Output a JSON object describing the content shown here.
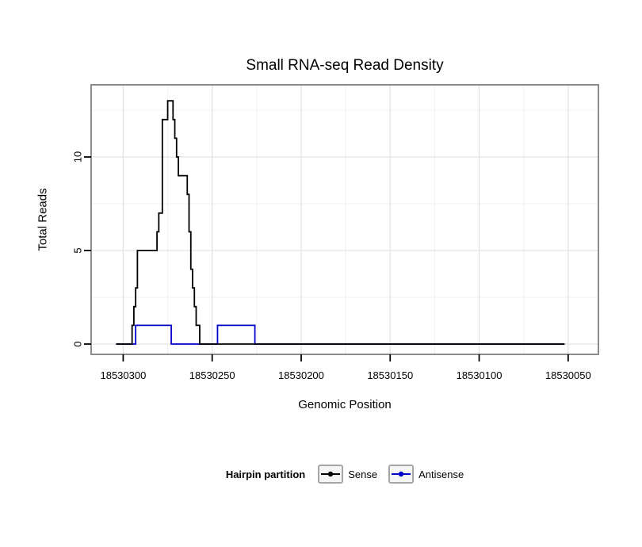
{
  "title": "Small RNA-seq Read Density",
  "x_axis": {
    "label": "Genomic Position",
    "reversed": true,
    "tick_labels": [
      "18530300",
      "18530250",
      "18530200",
      "18530150",
      "18530100",
      "18530050"
    ]
  },
  "y_axis": {
    "label": "Total Reads",
    "tick_labels": [
      "0",
      "5",
      "10"
    ]
  },
  "legend": {
    "title": "Hairpin partition",
    "items": [
      {
        "label": "Sense",
        "color": "#000000",
        "icon": "line-with-point"
      },
      {
        "label": "Antisense",
        "color": "#0000CC",
        "icon": "line-with-point"
      }
    ]
  },
  "colors": {
    "panel_border": "#8c8c8c",
    "grid_major": "#e3e3e3",
    "grid_minor": "#f1f1f1",
    "tick_mark": "#000000"
  },
  "chart_data": {
    "type": "line",
    "subtype": "step",
    "title": "Small RNA-seq Read Density",
    "xlabel": "Genomic Position",
    "ylabel": "Total Reads",
    "x_reversed": true,
    "x_domain": [
      18530318,
      18530033
    ],
    "x_major_ticks": [
      18530300,
      18530250,
      18530200,
      18530150,
      18530100,
      18530050
    ],
    "x_minor_ticks": [
      18530275,
      18530225,
      18530175,
      18530125,
      18530075
    ],
    "ylim": [
      -0.551,
      13.856
    ],
    "y_major_ticks": [
      0,
      5,
      10
    ],
    "y_minor_ticks": [
      2.5,
      7.5,
      12.5
    ],
    "grid": true,
    "legend_position": "bottom",
    "series": [
      {
        "name": "Sense",
        "color": "#000000",
        "step_points": [
          [
            18530304,
            0
          ],
          [
            18530295,
            1
          ],
          [
            18530294,
            2
          ],
          [
            18530293,
            3
          ],
          [
            18530292,
            5
          ],
          [
            18530281,
            6
          ],
          [
            18530280,
            7
          ],
          [
            18530278,
            12
          ],
          [
            18530275,
            13
          ],
          [
            18530272,
            12
          ],
          [
            18530271,
            11
          ],
          [
            18530270,
            10
          ],
          [
            18530269,
            9
          ],
          [
            18530264,
            8
          ],
          [
            18530263,
            6
          ],
          [
            18530262,
            4
          ],
          [
            18530261,
            3
          ],
          [
            18530260,
            2
          ],
          [
            18530259,
            1
          ],
          [
            18530257,
            0
          ],
          [
            18530052,
            0
          ]
        ]
      },
      {
        "name": "Antisense",
        "color": "#0000CC",
        "step_points": [
          [
            18530304,
            0
          ],
          [
            18530293,
            1
          ],
          [
            18530273,
            0
          ],
          [
            18530247,
            1
          ],
          [
            18530226,
            0
          ],
          [
            18530052,
            0
          ]
        ]
      }
    ]
  }
}
